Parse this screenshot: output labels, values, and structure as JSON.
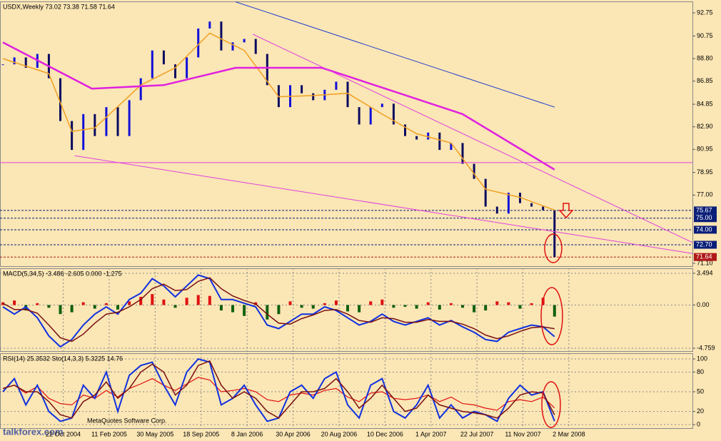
{
  "chart_data": [
    {
      "type": "candlestick",
      "title": "USDX,Weekly  73.02 73.38 71.58 71.64",
      "xlim": [
        -1,
        240
      ],
      "ylim": [
        70.85,
        93.74
      ],
      "yticks": [
        92.75,
        90.75,
        {
          "value": 88.8,
          "label": "88.80"
        },
        86.85,
        84.85,
        {
          "value": 82.9,
          "label": "82.90"
        },
        80.95,
        78.95,
        {
          "value": 77,
          "label": "77.00"
        },
        {
          "value": 71.1,
          "label": "71.10"
        }
      ],
      "x": [
        0,
        4,
        8,
        12,
        16,
        20,
        24,
        28,
        32,
        36,
        40,
        44,
        48,
        52,
        56,
        60,
        64,
        68,
        72,
        76,
        80,
        84,
        88,
        92,
        96,
        100,
        104,
        108,
        112,
        116,
        120,
        124,
        128,
        132,
        136,
        140,
        144,
        148,
        152,
        156,
        160,
        164,
        168,
        172,
        176,
        180,
        184,
        188,
        192
      ],
      "levels": [
        {
          "value": 75.67,
          "color": "#0a1e78"
        },
        {
          "value": 75,
          "label": "75.00",
          "color": "#0a1e78"
        },
        {
          "value": 74,
          "label": "74.00",
          "color": "#0a1e78"
        },
        {
          "value": 72.7,
          "label": "72.70",
          "color": "#0a1e78"
        },
        {
          "value": 71.64,
          "color": "#b01818"
        }
      ],
      "series": [
        {
          "style": "candles",
          "color": "#1010d8",
          "values": [
            88.3,
            88.9,
            88.0,
            89.2,
            87.1,
            83.4,
            80.9,
            84.0,
            82.1,
            84.6,
            82.1,
            85.2,
            87.1,
            89.5,
            88.3,
            87.1,
            88.9,
            91.4,
            92.0,
            89.5,
            90.2,
            90.5,
            89.2,
            86.5,
            84.6,
            86.5,
            85.8,
            85.2,
            86.1,
            86.8,
            84.6,
            83.1,
            84.6,
            84.9,
            83.1,
            82.1,
            81.8,
            82.4,
            80.9,
            81.5,
            79.7,
            78.4,
            76.0,
            75.4,
            77.2,
            76.3,
            76.0,
            75.7,
            71.64
          ]
        },
        {
          "style": "line",
          "color": "#f0a020",
          "width": 1.5,
          "x": [
            0,
            16,
            24,
            32,
            48,
            60,
            72,
            84,
            96,
            108,
            120,
            132,
            144,
            156,
            168,
            180,
            192
          ],
          "values": [
            88.8,
            87.5,
            82.5,
            82.8,
            86.5,
            88.0,
            91.0,
            89.5,
            85.5,
            85.6,
            85.8,
            84.0,
            82.3,
            81.5,
            77.5,
            76.8,
            75.7
          ]
        },
        {
          "style": "line",
          "color": "#e020e0",
          "width": 2.5,
          "x": [
            0,
            31,
            56,
            81,
            111,
            138,
            160,
            192
          ],
          "values": [
            90.2,
            86.2,
            86.5,
            88.0,
            88.0,
            85.8,
            84.0,
            79.2
          ]
        },
        {
          "style": "line",
          "color": "#2040d0",
          "width": 1,
          "x": [
            81,
            192
          ],
          "values": [
            93.7,
            84.6
          ]
        },
        {
          "style": "line",
          "color": "#e040e0",
          "width": 1,
          "x": [
            -1,
            240
          ],
          "values": [
            79.8,
            79.8
          ]
        },
        {
          "style": "line",
          "color": "#e040e0",
          "width": 1,
          "x": [
            25,
            240
          ],
          "values": [
            80.4,
            71.95
          ]
        },
        {
          "style": "line",
          "color": "#e040e0",
          "width": 1,
          "x": [
            87,
            240
          ],
          "values": [
            90.9,
            72.9
          ]
        }
      ]
    },
    {
      "type": "macd",
      "title": "MACD(5,34,5) -3.486 -2.605 0.000 -1.275",
      "xlim": [
        -1,
        240
      ],
      "ylim": [
        -5.07,
        4.04
      ],
      "grid": true,
      "vgrid": true,
      "yticks": [
        3.494,
        {
          "value": 0,
          "label": "0.00"
        },
        -4.759
      ],
      "x": [
        0,
        4,
        8,
        12,
        16,
        20,
        24,
        28,
        32,
        36,
        40,
        44,
        48,
        52,
        56,
        60,
        64,
        68,
        72,
        76,
        80,
        84,
        88,
        92,
        96,
        100,
        104,
        108,
        112,
        116,
        120,
        124,
        128,
        132,
        136,
        140,
        144,
        148,
        152,
        156,
        160,
        164,
        168,
        172,
        176,
        180,
        184,
        188,
        192
      ],
      "series": [
        {
          "style": "histogram",
          "color": "#e01010",
          "negative_color": "#106010",
          "values": [
            0.3,
            0.5,
            -0.6,
            0.2,
            -0.3,
            -1.0,
            -0.8,
            0.3,
            -0.4,
            0.2,
            -0.5,
            0.4,
            0.9,
            1.2,
            0.6,
            -0.3,
            0.8,
            1.1,
            1.0,
            -0.6,
            -0.8,
            -1.2,
            0.3,
            -1.6,
            -1.0,
            0.4,
            -0.3,
            -0.4,
            0.2,
            0.5,
            -0.7,
            -0.8,
            0.4,
            0.6,
            -0.3,
            -0.2,
            -0.4,
            0.3,
            -0.5,
            0.2,
            -0.3,
            -0.8,
            -0.6,
            0.4,
            0.3,
            -0.4,
            0.2,
            0.8,
            -1.275
          ]
        },
        {
          "style": "line",
          "color": "#1030e0",
          "width": 2,
          "values": [
            -0.2,
            -1.0,
            -0.2,
            -1.4,
            -3.4,
            -4.6,
            -3.8,
            -2.2,
            -1.0,
            -0.2,
            -1.0,
            0.6,
            1.3,
            2.9,
            2.1,
            0.9,
            2.1,
            3.3,
            2.9,
            0.6,
            0.6,
            0.2,
            -0.2,
            -2.2,
            -2.6,
            -1.8,
            -1.0,
            -1.0,
            -0.2,
            -0.6,
            -1.4,
            -2.2,
            -1.8,
            -1.0,
            -1.8,
            -2.2,
            -1.8,
            -1.4,
            -2.2,
            -1.7,
            -2.4,
            -3.0,
            -3.8,
            -4.0,
            -3.0,
            -2.6,
            -2.2,
            -2.4,
            -3.486
          ]
        },
        {
          "style": "line",
          "color": "#7a1010",
          "width": 1.5,
          "values": [
            0.2,
            -0.5,
            -0.5,
            -0.9,
            -2.2,
            -3.6,
            -4.0,
            -3.2,
            -2.0,
            -1.0,
            -0.8,
            -0.2,
            0.6,
            1.8,
            2.3,
            1.6,
            1.7,
            2.6,
            3.0,
            1.8,
            1.0,
            0.5,
            0.1,
            -1.0,
            -2.0,
            -2.1,
            -1.5,
            -1.1,
            -0.6,
            -0.5,
            -1.0,
            -1.7,
            -1.9,
            -1.4,
            -1.5,
            -1.9,
            -1.9,
            -1.6,
            -1.8,
            -1.8,
            -2.1,
            -2.6,
            -3.3,
            -3.7,
            -3.4,
            -2.9,
            -2.5,
            -2.4,
            -2.605
          ]
        }
      ]
    },
    {
      "type": "oscillator",
      "title": "RSI(14) 25.3532  Sto(14,3,3) 5.3225 14.76",
      "credit": "MetaQuotes Software Corp.",
      "watermark": "talkforex.com",
      "xlim": [
        -1,
        240
      ],
      "ylim": [
        -5.4,
        108.7
      ],
      "grid": true,
      "vgrid": true,
      "yticks": [
        100,
        80,
        50,
        20,
        0
      ],
      "xticks": [
        {
          "value": 21,
          "label": "22 Oct 2004"
        },
        {
          "value": 37,
          "label": "11 Feb 2005"
        },
        {
          "value": 53,
          "label": "30 May 2005"
        },
        {
          "value": 69,
          "label": "18 Sep 2005"
        },
        {
          "value": 85,
          "label": "8 Jan 2006"
        },
        {
          "value": 101,
          "label": "30 Apr 2006"
        },
        {
          "value": 117,
          "label": "20 Aug 2006"
        },
        {
          "value": 133,
          "label": "10 Dec 2006"
        },
        {
          "value": 149,
          "label": "1 Apr 2007"
        },
        {
          "value": 165,
          "label": "22 Jul 2007"
        },
        {
          "value": 181,
          "label": "11 Nov 2007"
        },
        {
          "value": 197,
          "label": "2 Mar 2008"
        }
      ],
      "x": [
        0,
        4,
        8,
        12,
        16,
        20,
        24,
        28,
        32,
        36,
        40,
        44,
        48,
        52,
        56,
        60,
        64,
        68,
        72,
        76,
        80,
        84,
        88,
        92,
        96,
        100,
        104,
        108,
        112,
        116,
        120,
        124,
        128,
        132,
        136,
        140,
        144,
        148,
        152,
        156,
        160,
        164,
        168,
        172,
        176,
        180,
        184,
        188,
        192
      ],
      "series": [
        {
          "style": "line",
          "color": "#e01010",
          "width": 1.2,
          "values": [
            55,
            60,
            48,
            58,
            40,
            32,
            30,
            45,
            40,
            52,
            42,
            55,
            62,
            70,
            60,
            52,
            62,
            72,
            68,
            50,
            52,
            55,
            50,
            38,
            35,
            45,
            48,
            45,
            52,
            55,
            42,
            35,
            48,
            50,
            40,
            38,
            40,
            45,
            35,
            42,
            32,
            30,
            25,
            22,
            35,
            38,
            35,
            42,
            25.3532
          ]
        },
        {
          "style": "line",
          "color": "#1030e0",
          "width": 2,
          "values": [
            50,
            70,
            30,
            60,
            20,
            5,
            10,
            60,
            40,
            80,
            20,
            75,
            90,
            95,
            60,
            30,
            80,
            100,
            95,
            30,
            40,
            60,
            30,
            5,
            10,
            50,
            60,
            40,
            70,
            80,
            30,
            10,
            60,
            70,
            20,
            10,
            30,
            60,
            10,
            30,
            10,
            20,
            15,
            5,
            40,
            60,
            45,
            50,
            5.3225
          ]
        },
        {
          "style": "line",
          "color": "#7a1010",
          "width": 1.5,
          "values": [
            55,
            60,
            50,
            50,
            35,
            15,
            10,
            35,
            45,
            65,
            40,
            55,
            80,
            92,
            80,
            45,
            60,
            90,
            97,
            60,
            40,
            50,
            40,
            20,
            10,
            30,
            50,
            50,
            55,
            70,
            50,
            25,
            40,
            60,
            40,
            20,
            25,
            45,
            30,
            25,
            20,
            18,
            15,
            10,
            25,
            45,
            50,
            48,
            14.76
          ]
        }
      ]
    }
  ]
}
